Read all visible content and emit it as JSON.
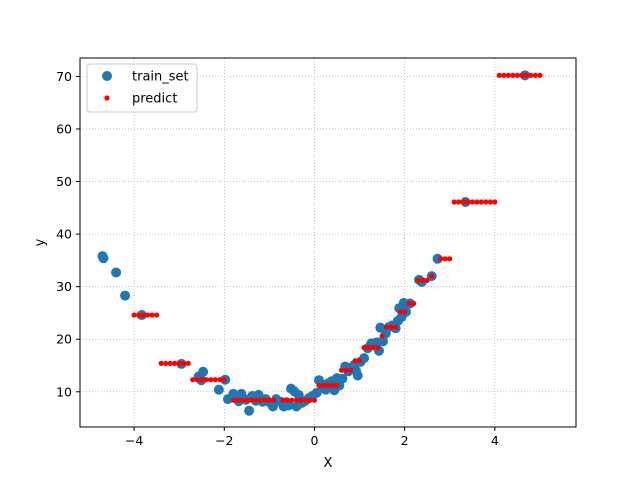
{
  "chart_data": {
    "type": "scatter",
    "title": "",
    "xlabel": "X",
    "ylabel": "y",
    "xlim": [
      -5.2,
      5.8
    ],
    "ylim": [
      3.3,
      73.5
    ],
    "xticks": [
      -4,
      -2,
      0,
      2,
      4
    ],
    "yticks": [
      10,
      20,
      30,
      40,
      50,
      60,
      70
    ],
    "grid": true,
    "legend_position": "top-left",
    "series": [
      {
        "name": "train_set",
        "marker": "circle",
        "color": "#1f77b4",
        "points": [
          [
            -4.7,
            35.8
          ],
          [
            -4.68,
            35.4
          ],
          [
            -4.4,
            32.7
          ],
          [
            -4.2,
            28.3
          ],
          [
            -3.83,
            24.6
          ],
          [
            -2.95,
            15.3
          ],
          [
            -2.57,
            12.9
          ],
          [
            -2.47,
            13.8
          ],
          [
            -2.51,
            12.2
          ],
          [
            -1.98,
            12.3
          ],
          [
            -2.12,
            10.4
          ],
          [
            -1.92,
            8.6
          ],
          [
            -1.8,
            9.6
          ],
          [
            -1.68,
            8.2
          ],
          [
            -1.62,
            9.6
          ],
          [
            -1.52,
            8.5
          ],
          [
            -1.45,
            6.4
          ],
          [
            -1.38,
            9.2
          ],
          [
            -1.3,
            8.3
          ],
          [
            -1.24,
            9.4
          ],
          [
            -1.15,
            8.1
          ],
          [
            -1.08,
            8.6
          ],
          [
            -0.98,
            7.9
          ],
          [
            -0.92,
            7.2
          ],
          [
            -0.85,
            8.6
          ],
          [
            -0.75,
            8.1
          ],
          [
            -0.68,
            7.2
          ],
          [
            -0.62,
            8.0
          ],
          [
            -0.58,
            7.4
          ],
          [
            -0.52,
            10.6
          ],
          [
            -0.45,
            10.1
          ],
          [
            -0.4,
            7.2
          ],
          [
            -0.35,
            9.4
          ],
          [
            -0.28,
            7.9
          ],
          [
            -0.2,
            8.3
          ],
          [
            -0.12,
            8.8
          ],
          [
            -0.05,
            9.2
          ],
          [
            0.05,
            9.8
          ],
          [
            0.1,
            12.2
          ],
          [
            0.18,
            11.1
          ],
          [
            0.25,
            10.4
          ],
          [
            0.3,
            11.6
          ],
          [
            0.38,
            12.0
          ],
          [
            0.44,
            10.3
          ],
          [
            0.5,
            12.6
          ],
          [
            0.55,
            11.2
          ],
          [
            0.62,
            12.5
          ],
          [
            0.68,
            14.8
          ],
          [
            0.75,
            13.9
          ],
          [
            0.82,
            14.6
          ],
          [
            0.88,
            15.1
          ],
          [
            0.92,
            14.0
          ],
          [
            0.96,
            13.1
          ],
          [
            1.02,
            15.7
          ],
          [
            1.1,
            16.4
          ],
          [
            1.18,
            18.3
          ],
          [
            1.26,
            19.2
          ],
          [
            1.32,
            18.9
          ],
          [
            1.38,
            19.4
          ],
          [
            1.43,
            17.8
          ],
          [
            1.46,
            22.2
          ],
          [
            1.52,
            19.6
          ],
          [
            1.58,
            21.1
          ],
          [
            1.65,
            22.3
          ],
          [
            1.72,
            22.6
          ],
          [
            1.8,
            22.1
          ],
          [
            1.85,
            23.5
          ],
          [
            1.88,
            25.9
          ],
          [
            1.93,
            24.2
          ],
          [
            1.98,
            26.9
          ],
          [
            2.03,
            25.2
          ],
          [
            2.12,
            26.8
          ],
          [
            2.32,
            31.3
          ],
          [
            2.38,
            30.9
          ],
          [
            2.6,
            32.0
          ],
          [
            2.73,
            35.3
          ],
          [
            3.35,
            46.1
          ],
          [
            4.67,
            70.2
          ]
        ]
      },
      {
        "name": "predict",
        "marker": "circle-small",
        "color": "#ff0000",
        "points": [
          [
            -4.0,
            24.6
          ],
          [
            -3.9,
            24.6
          ],
          [
            -3.8,
            24.6
          ],
          [
            -3.7,
            24.6
          ],
          [
            -3.6,
            24.6
          ],
          [
            -3.5,
            24.6
          ],
          [
            -3.4,
            15.4
          ],
          [
            -3.3,
            15.4
          ],
          [
            -3.2,
            15.4
          ],
          [
            -3.1,
            15.4
          ],
          [
            -3.0,
            15.4
          ],
          [
            -2.9,
            15.4
          ],
          [
            -2.8,
            15.4
          ],
          [
            -2.7,
            12.3
          ],
          [
            -2.6,
            12.3
          ],
          [
            -2.5,
            12.3
          ],
          [
            -2.4,
            12.3
          ],
          [
            -2.3,
            12.3
          ],
          [
            -2.2,
            12.3
          ],
          [
            -2.1,
            12.3
          ],
          [
            -2.0,
            12.3
          ],
          [
            -1.8,
            8.4
          ],
          [
            -1.7,
            8.4
          ],
          [
            -1.6,
            8.4
          ],
          [
            -1.5,
            8.4
          ],
          [
            -1.4,
            8.4
          ],
          [
            -1.3,
            8.4
          ],
          [
            -1.2,
            8.4
          ],
          [
            -1.1,
            8.4
          ],
          [
            -1.0,
            8.4
          ],
          [
            -0.9,
            8.4
          ],
          [
            -0.7,
            8.4
          ],
          [
            -0.6,
            8.4
          ],
          [
            -0.5,
            8.4
          ],
          [
            -0.4,
            8.4
          ],
          [
            -0.3,
            8.4
          ],
          [
            -0.2,
            8.4
          ],
          [
            -0.1,
            8.4
          ],
          [
            0.0,
            8.4
          ],
          [
            0.1,
            11.2
          ],
          [
            0.2,
            11.2
          ],
          [
            0.3,
            11.2
          ],
          [
            0.4,
            11.2
          ],
          [
            0.5,
            11.2
          ],
          [
            0.6,
            14.1
          ],
          [
            0.7,
            14.1
          ],
          [
            0.8,
            14.1
          ],
          [
            0.9,
            15.9
          ],
          [
            1.0,
            15.9
          ],
          [
            1.1,
            18.4
          ],
          [
            1.2,
            18.4
          ],
          [
            1.3,
            18.4
          ],
          [
            1.4,
            18.4
          ],
          [
            1.5,
            20.6
          ],
          [
            1.6,
            22.3
          ],
          [
            1.7,
            22.3
          ],
          [
            1.8,
            22.3
          ],
          [
            1.9,
            25.2
          ],
          [
            2.0,
            25.2
          ],
          [
            2.1,
            26.8
          ],
          [
            2.2,
            26.8
          ],
          [
            2.3,
            31.2
          ],
          [
            2.4,
            31.2
          ],
          [
            2.5,
            31.2
          ],
          [
            2.6,
            32.0
          ],
          [
            2.8,
            35.3
          ],
          [
            2.9,
            35.3
          ],
          [
            3.0,
            35.3
          ],
          [
            3.1,
            46.1
          ],
          [
            3.2,
            46.1
          ],
          [
            3.3,
            46.1
          ],
          [
            3.4,
            46.1
          ],
          [
            3.5,
            46.1
          ],
          [
            3.6,
            46.1
          ],
          [
            3.7,
            46.1
          ],
          [
            3.8,
            46.1
          ],
          [
            3.9,
            46.1
          ],
          [
            4.0,
            46.1
          ],
          [
            4.1,
            70.2
          ],
          [
            4.2,
            70.2
          ],
          [
            4.3,
            70.2
          ],
          [
            4.4,
            70.2
          ],
          [
            4.5,
            70.2
          ],
          [
            4.6,
            70.2
          ],
          [
            4.7,
            70.2
          ],
          [
            4.8,
            70.2
          ],
          [
            4.9,
            70.2
          ],
          [
            5.0,
            70.2
          ]
        ]
      }
    ]
  }
}
